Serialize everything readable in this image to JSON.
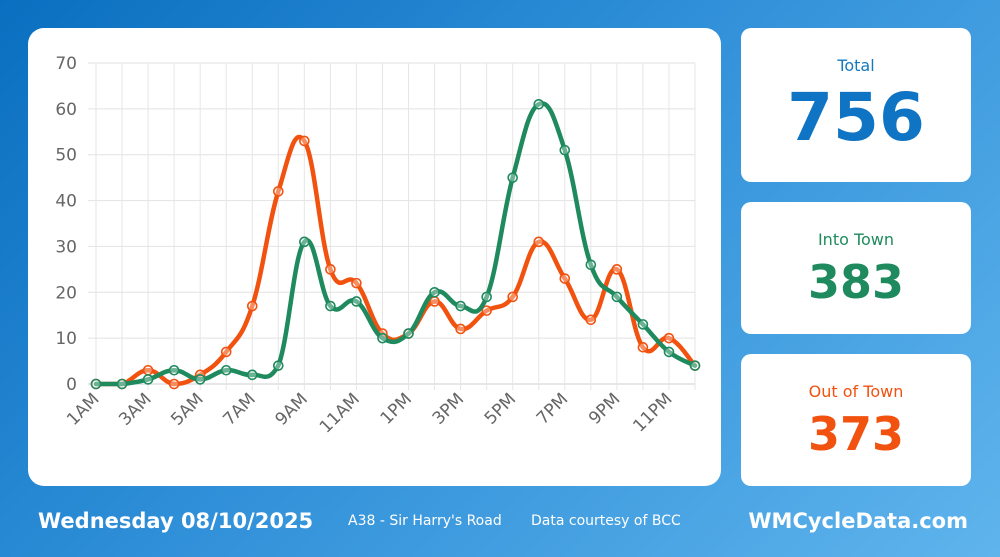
{
  "chart_data": {
    "type": "line",
    "categories": [
      "1AM",
      "2AM",
      "3AM",
      "4AM",
      "5AM",
      "6AM",
      "7AM",
      "8AM",
      "9AM",
      "10AM",
      "11AM",
      "12PM",
      "1PM",
      "2PM",
      "3PM",
      "4PM",
      "5PM",
      "6PM",
      "7PM",
      "8PM",
      "9PM",
      "10PM",
      "11PM",
      "12AM"
    ],
    "x_tick_labels": [
      "1AM",
      "3AM",
      "5AM",
      "7AM",
      "9AM",
      "11AM",
      "1PM",
      "3PM",
      "5PM",
      "7PM",
      "9PM",
      "11PM"
    ],
    "y_ticks": [
      0,
      10,
      20,
      30,
      40,
      50,
      60,
      70
    ],
    "ylim": [
      0,
      70
    ],
    "grid": true,
    "series": [
      {
        "name": "Out of Town",
        "color": "#f2520f",
        "values": [
          0,
          0,
          3,
          0,
          2,
          7,
          17,
          42,
          53,
          25,
          22,
          11,
          11,
          18,
          12,
          16,
          19,
          31,
          23,
          14,
          25,
          8,
          10,
          4
        ]
      },
      {
        "name": "Into Town",
        "color": "#1e8a5e",
        "values": [
          0,
          0,
          1,
          3,
          1,
          3,
          2,
          4,
          31,
          17,
          18,
          10,
          11,
          20,
          17,
          19,
          45,
          61,
          51,
          26,
          19,
          13,
          7,
          4
        ]
      }
    ]
  },
  "stats": {
    "total": {
      "label": "Total",
      "value": "756"
    },
    "into": {
      "label": "Into Town",
      "value": "383"
    },
    "out": {
      "label": "Out of Town",
      "value": "373"
    }
  },
  "footer": {
    "date": "Wednesday 08/10/2025",
    "location": "A38 - Sir Harry's Road",
    "credit": "Data courtesy of BCC",
    "site": "WMCycleData.com"
  },
  "colors": {
    "out": "#f2520f",
    "into": "#1e8a5e",
    "total": "#0f74c4"
  }
}
